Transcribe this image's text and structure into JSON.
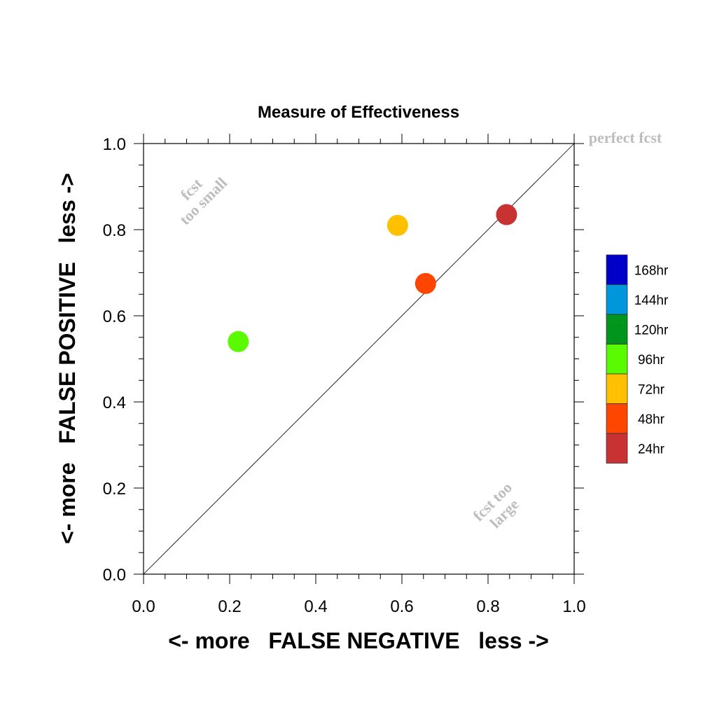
{
  "chart_data": {
    "type": "scatter",
    "title": "Measure of Effectiveness",
    "xlabel": "<- more   FALSE NEGATIVE   less ->",
    "ylabel": "<- more   FALSE POSITIVE   less ->",
    "xlim": [
      0,
      1
    ],
    "ylim": [
      0,
      1
    ],
    "x_ticks": [
      "0.0",
      "0.2",
      "0.4",
      "0.6",
      "0.8",
      "1.0"
    ],
    "y_ticks": [
      "0.0",
      "0.2",
      "0.4",
      "0.6",
      "0.8",
      "1.0"
    ],
    "grid": false,
    "diagonal_line": true,
    "annotations": {
      "perfect": "perfect fcst",
      "too_small_1": "fcst",
      "too_small_2": "too small",
      "too_large_1": "fcst too",
      "too_large_2": "large"
    },
    "legend": {
      "placement": "right",
      "entries": [
        {
          "label": "168hr",
          "color": "#0000c8"
        },
        {
          "label": "144hr",
          "color": "#0096dc"
        },
        {
          "label": "120hr",
          "color": "#00961e"
        },
        {
          "label": "96hr",
          "color": "#5afa00"
        },
        {
          "label": "72hr",
          "color": "#ffc000"
        },
        {
          "label": "48hr",
          "color": "#ff4600"
        },
        {
          "label": "24hr",
          "color": "#c83232"
        }
      ]
    },
    "points": [
      {
        "x": 0.22,
        "y": 0.54,
        "color": "#5afa00"
      },
      {
        "x": 0.59,
        "y": 0.81,
        "color": "#ffc000"
      },
      {
        "x": 0.655,
        "y": 0.675,
        "color": "#ff4600"
      },
      {
        "x": 0.843,
        "y": 0.835,
        "color": "#c83232"
      }
    ]
  }
}
